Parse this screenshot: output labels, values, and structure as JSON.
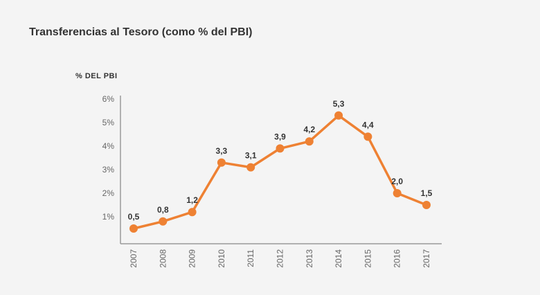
{
  "title": "Transferencias al Tesoro (como % del PBI)",
  "chart_data": {
    "type": "line",
    "title": "Transferencias al Tesoro (como % del PBI)",
    "ylabel": "% DEL PBI",
    "xlabel": "",
    "categories": [
      "2007",
      "2008",
      "2009",
      "2010",
      "2011",
      "2012",
      "2013",
      "2014",
      "2015",
      "2016",
      "2017"
    ],
    "values": [
      0.5,
      0.8,
      1.2,
      3.3,
      3.1,
      3.9,
      4.2,
      5.3,
      4.4,
      2.0,
      1.5
    ],
    "data_labels": [
      "0,5",
      "0,8",
      "1,2",
      "3,3",
      "3,1",
      "3,9",
      "4,2",
      "5,3",
      "4,4",
      "2,0",
      "1,5"
    ],
    "y_ticks": [
      1,
      2,
      3,
      4,
      5,
      6
    ],
    "y_tick_labels": [
      "1%",
      "2%",
      "3%",
      "4%",
      "5%",
      "6%"
    ],
    "ylim": [
      0,
      6
    ],
    "grid": false,
    "legend": "none",
    "line_color": "#ee8133",
    "axis_color": "#999999"
  }
}
